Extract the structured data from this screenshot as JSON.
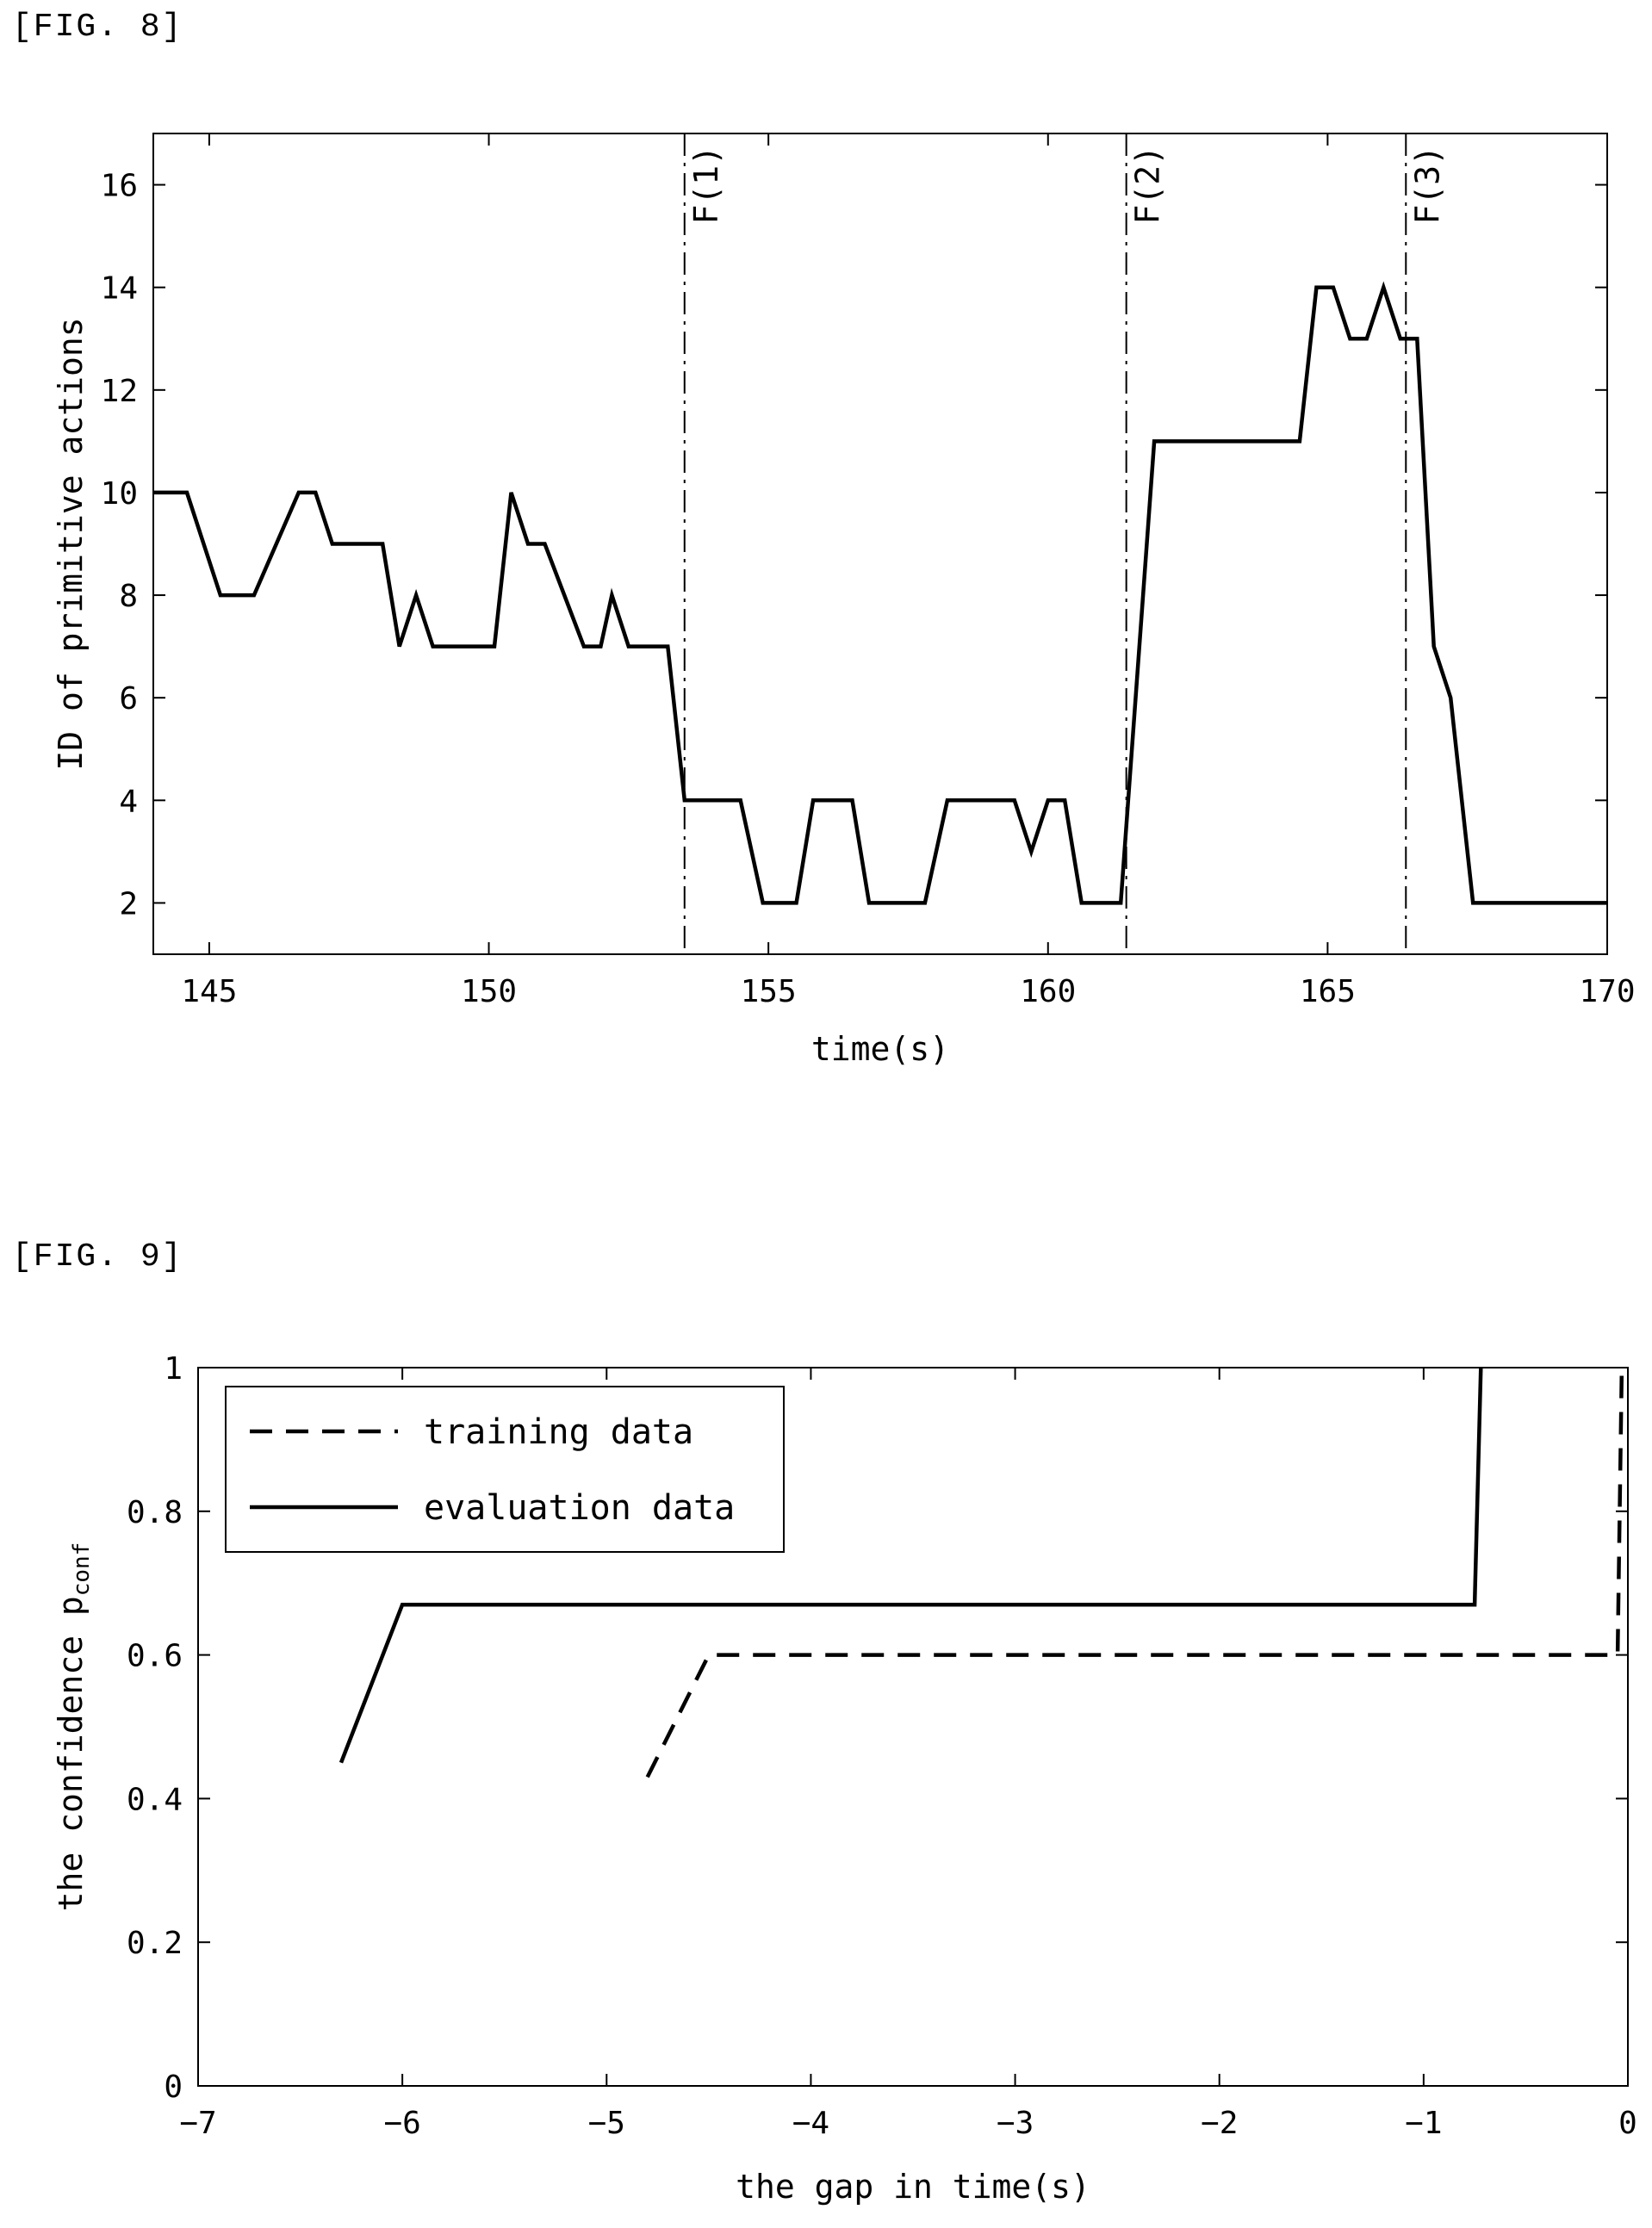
{
  "fig8_label": "[FIG. 8]",
  "fig9_label": "[FIG. 9]",
  "chart_data": [
    {
      "type": "line",
      "xlabel": "time(s)",
      "ylabel": "ID of primitive actions",
      "xlim": [
        144,
        170
      ],
      "ylim": [
        1,
        17
      ],
      "xticks": [
        145,
        150,
        155,
        160,
        165,
        170
      ],
      "yticks": [
        2,
        4,
        6,
        8,
        10,
        12,
        14,
        16
      ],
      "grid": false,
      "series": [
        {
          "x": [
            144.0,
            144.6,
            145.2,
            145.8,
            146.6,
            146.9,
            147.2,
            148.1,
            148.4,
            148.7,
            149.0,
            150.1,
            150.4,
            150.7,
            151.0,
            151.7,
            152.0,
            152.2,
            152.5,
            153.2,
            153.5,
            154.5,
            154.9,
            155.5,
            155.8,
            156.5,
            156.8,
            157.8,
            158.2,
            159.4,
            159.7,
            160.0,
            160.3,
            160.6,
            161.3,
            161.9,
            162.5,
            164.5,
            164.8,
            165.1,
            165.4,
            165.7,
            166.0,
            166.3,
            166.6,
            166.9,
            167.2,
            167.6,
            168.0,
            170.0
          ],
          "y": [
            10,
            10,
            8,
            8,
            10,
            10,
            9,
            9,
            7,
            8,
            7,
            7,
            10,
            9,
            9,
            7,
            7,
            8,
            7,
            7,
            4,
            4,
            2,
            2,
            4,
            4,
            2,
            2,
            4,
            4,
            3,
            4,
            4,
            2,
            2,
            11,
            11,
            11,
            14,
            14,
            13,
            13,
            14,
            13,
            13,
            7,
            6,
            2,
            2,
            2
          ]
        }
      ],
      "annotations": [
        {
          "label": "F(1)",
          "x": 153.5
        },
        {
          "label": "F(2)",
          "x": 161.4
        },
        {
          "label": "F(3)",
          "x": 166.4
        }
      ]
    },
    {
      "type": "line",
      "xlabel": "the gap in time(s)",
      "ylabel_main": "the confidence p",
      "ylabel_sub": "conf",
      "xlim": [
        -7,
        0
      ],
      "ylim": [
        0,
        1
      ],
      "xticks": [
        -7,
        -6,
        -5,
        -4,
        -3,
        -2,
        -1,
        0
      ],
      "xtick_labels": [
        "−7",
        "−6",
        "−5",
        "−4",
        "−3",
        "−2",
        "−1",
        "0"
      ],
      "yticks": [
        0,
        0.2,
        0.4,
        0.6,
        0.8,
        1
      ],
      "ytick_labels": [
        "0",
        "0.2",
        "0.4",
        "0.6",
        "0.8",
        "1"
      ],
      "grid": false,
      "legend": "top-left",
      "series": [
        {
          "name": "training data",
          "style": "dashed",
          "x": [
            -4.8,
            -4.5,
            -0.05,
            -0.03
          ],
          "y": [
            0.43,
            0.6,
            0.6,
            1.0
          ]
        },
        {
          "name": "evaluation data",
          "style": "solid",
          "x": [
            -6.3,
            -6.0,
            -0.75,
            -0.72
          ],
          "y": [
            0.45,
            0.67,
            0.67,
            1.0
          ]
        }
      ]
    }
  ]
}
